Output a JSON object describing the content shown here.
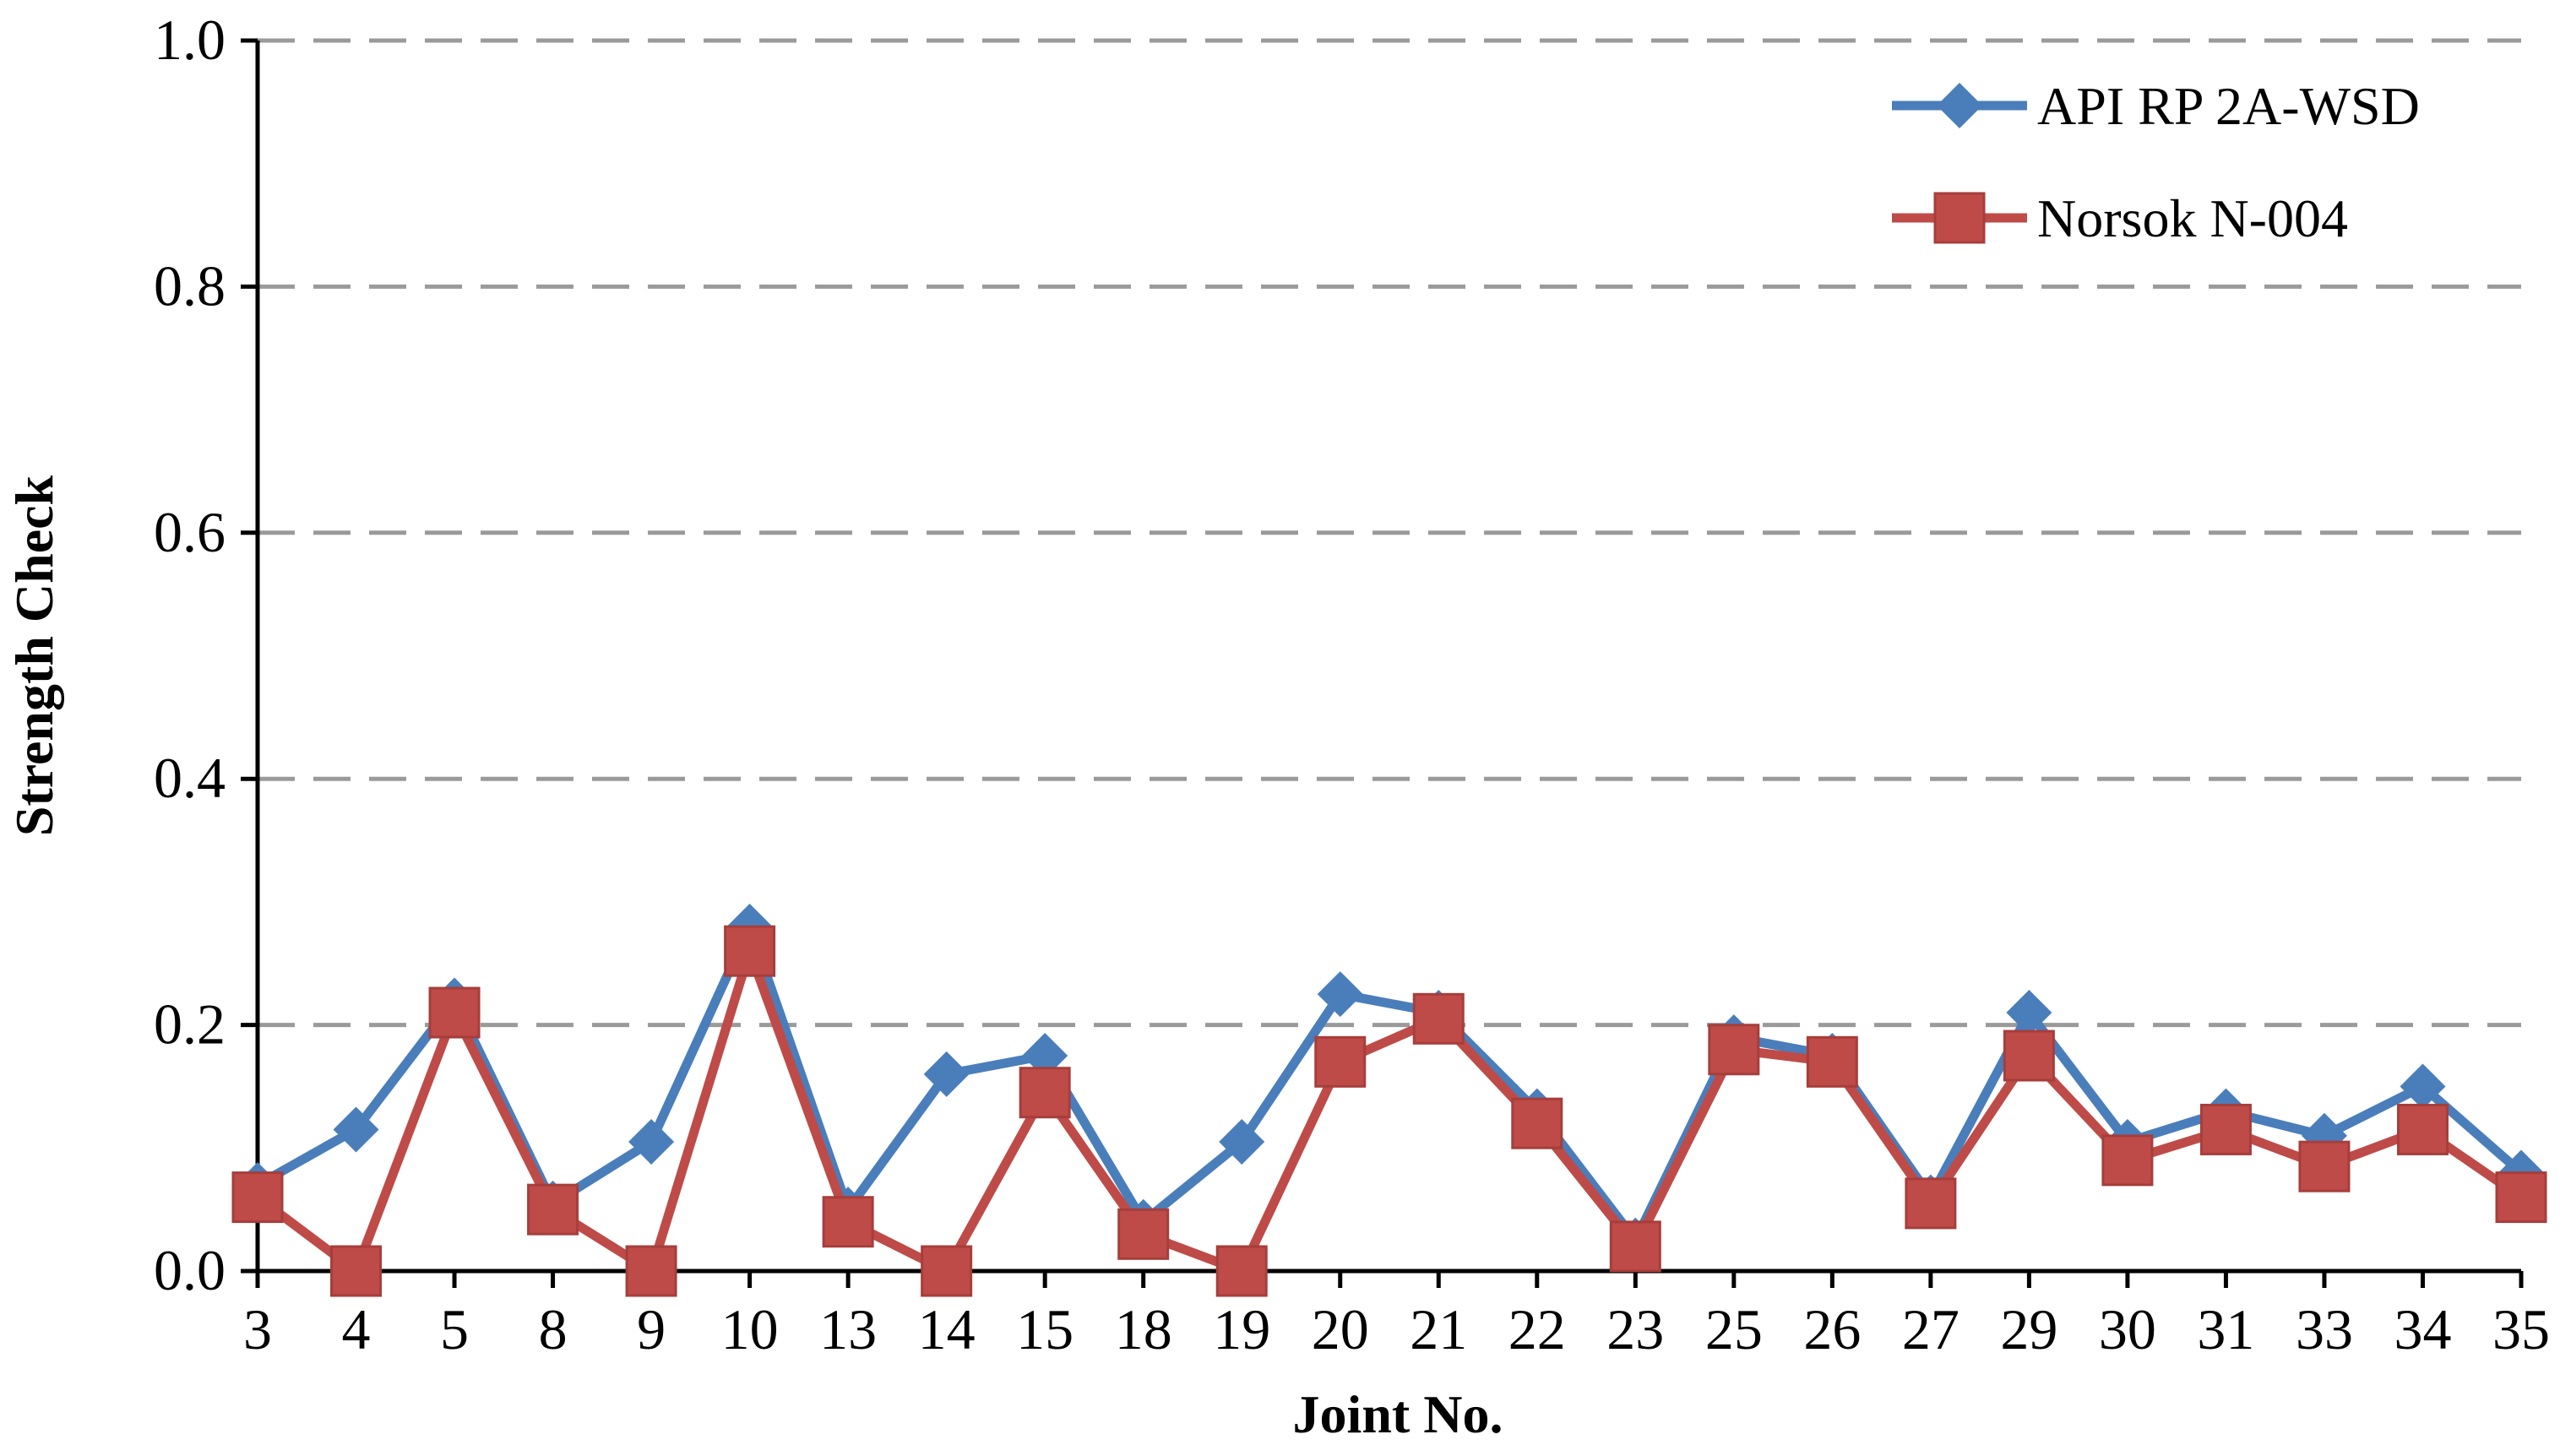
{
  "chart_data": {
    "type": "line",
    "xlabel": "Joint No.",
    "ylabel": "Strength Check",
    "ylim": [
      0,
      1.0
    ],
    "yticks": [
      "0.0",
      "0.2",
      "0.4",
      "0.6",
      "0.8",
      "1.0"
    ],
    "grid": "horizontal dashed",
    "legend_position": "top-right",
    "categories": [
      "3",
      "4",
      "5",
      "8",
      "9",
      "10",
      "13",
      "14",
      "15",
      "18",
      "19",
      "20",
      "21",
      "22",
      "23",
      "25",
      "26",
      "27",
      "29",
      "30",
      "31",
      "33",
      "34",
      "35"
    ],
    "series": [
      {
        "name": "API RP 2A-WSD",
        "color": "#4a7ebb",
        "marker": "diamond",
        "values": [
          0.07,
          0.115,
          0.22,
          0.055,
          0.105,
          0.28,
          0.05,
          0.16,
          0.175,
          0.04,
          0.105,
          0.225,
          0.21,
          0.13,
          0.025,
          0.19,
          0.175,
          0.06,
          0.21,
          0.105,
          0.13,
          0.11,
          0.15,
          0.08
        ]
      },
      {
        "name": "Norsok N-004",
        "color": "#be4b48",
        "marker": "square",
        "values": [
          0.06,
          0.0,
          0.21,
          0.05,
          0.0,
          0.26,
          0.04,
          0.0,
          0.145,
          0.03,
          0.0,
          0.17,
          0.205,
          0.12,
          0.02,
          0.18,
          0.17,
          0.055,
          0.175,
          0.09,
          0.115,
          0.085,
          0.115,
          0.06
        ]
      }
    ]
  }
}
